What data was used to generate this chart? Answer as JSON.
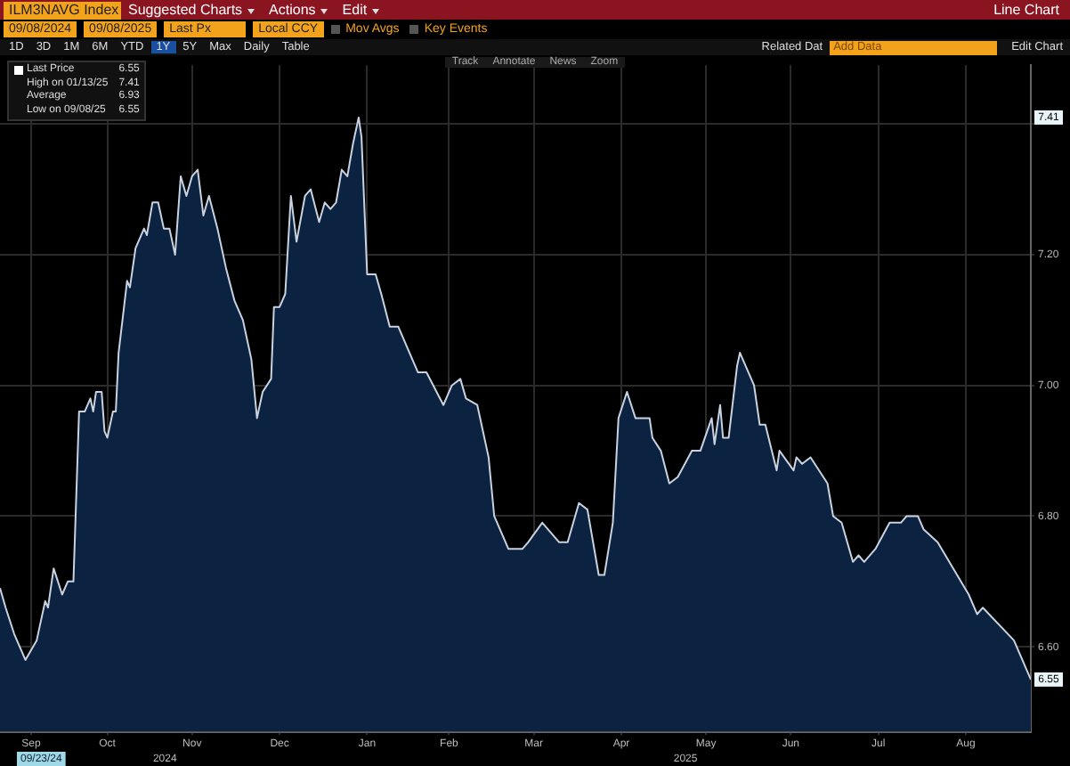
{
  "chart_data": {
    "type": "area",
    "title": "ILM3NAVG Index",
    "subtitle": "Line Chart",
    "x": [
      "2024-09-08",
      "2024-09-10",
      "2024-09-13",
      "2024-09-17",
      "2024-09-21",
      "2024-09-24",
      "2024-09-25",
      "2024-09-27",
      "2024-09-30",
      "2024-10-02",
      "2024-10-04",
      "2024-10-06",
      "2024-10-08",
      "2024-10-10",
      "2024-10-11",
      "2024-10-12",
      "2024-10-14",
      "2024-10-15",
      "2024-10-16",
      "2024-10-18",
      "2024-10-19",
      "2024-10-20",
      "2024-10-23",
      "2024-10-24",
      "2024-10-26",
      "2024-10-29",
      "2024-10-30",
      "2024-11-01",
      "2024-11-03",
      "2024-11-05",
      "2024-11-07",
      "2024-11-09",
      "2024-11-11",
      "2024-11-13",
      "2024-11-15",
      "2024-11-17",
      "2024-11-19",
      "2024-11-21",
      "2024-11-24",
      "2024-11-27",
      "2024-11-30",
      "2024-12-03",
      "2024-12-06",
      "2024-12-08",
      "2024-12-10",
      "2024-12-13",
      "2024-12-14",
      "2024-12-16",
      "2024-12-18",
      "2024-12-20",
      "2024-12-22",
      "2024-12-25",
      "2024-12-27",
      "2024-12-30",
      "2025-01-01",
      "2025-01-03",
      "2025-01-05",
      "2025-01-07",
      "2025-01-09",
      "2025-01-11",
      "2025-01-13",
      "2025-01-14",
      "2025-01-16",
      "2025-01-19",
      "2025-01-21",
      "2025-01-24",
      "2025-01-27",
      "2025-01-31",
      "2025-02-03",
      "2025-02-06",
      "2025-02-12",
      "2025-02-15",
      "2025-02-18",
      "2025-02-20",
      "2025-02-24",
      "2025-02-28",
      "2025-03-02",
      "2025-03-07",
      "2025-03-12",
      "2025-03-14",
      "2025-03-19",
      "2025-03-25",
      "2025-03-28",
      "2025-04-01",
      "2025-04-04",
      "2025-04-08",
      "2025-04-10",
      "2025-04-13",
      "2025-04-15",
      "2025-04-18",
      "2025-04-21",
      "2025-04-26",
      "2025-04-27",
      "2025-04-30",
      "2025-05-03",
      "2025-05-06",
      "2025-05-11",
      "2025-05-14",
      "2025-05-18",
      "2025-05-19",
      "2025-05-21",
      "2025-05-22",
      "2025-05-24",
      "2025-05-27",
      "2025-05-28",
      "2025-06-02",
      "2025-06-04",
      "2025-06-06",
      "2025-06-10",
      "2025-06-11",
      "2025-06-16",
      "2025-06-17",
      "2025-06-19",
      "2025-06-22",
      "2025-06-28",
      "2025-06-30",
      "2025-07-03",
      "2025-07-07",
      "2025-07-09",
      "2025-07-11",
      "2025-07-15",
      "2025-07-20",
      "2025-07-24",
      "2025-07-26",
      "2025-07-30",
      "2025-08-01",
      "2025-08-06",
      "2025-08-17",
      "2025-08-20",
      "2025-08-22",
      "2025-09-02",
      "2025-09-05",
      "2025-09-08"
    ],
    "values": [
      6.69,
      6.66,
      6.62,
      6.58,
      6.61,
      6.67,
      6.66,
      6.72,
      6.68,
      6.7,
      6.7,
      6.96,
      6.96,
      6.98,
      6.96,
      6.99,
      6.99,
      6.93,
      6.92,
      6.96,
      6.96,
      7.05,
      7.16,
      7.15,
      7.21,
      7.24,
      7.23,
      7.28,
      7.28,
      7.24,
      7.24,
      7.2,
      7.32,
      7.29,
      7.32,
      7.33,
      7.26,
      7.29,
      7.24,
      7.18,
      7.13,
      7.1,
      7.04,
      6.95,
      6.99,
      7.01,
      7.12,
      7.12,
      7.14,
      7.29,
      7.22,
      7.29,
      7.3,
      7.25,
      7.28,
      7.27,
      7.28,
      7.33,
      7.32,
      7.37,
      7.41,
      7.38,
      7.17,
      7.17,
      7.14,
      7.09,
      7.09,
      7.05,
      7.02,
      7.02,
      6.97,
      7.0,
      7.01,
      6.98,
      6.97,
      6.89,
      6.8,
      6.75,
      6.75,
      6.76,
      6.79,
      6.76,
      6.76,
      6.82,
      6.81,
      6.71,
      6.71,
      6.79,
      6.95,
      6.99,
      6.95,
      6.95,
      6.92,
      6.9,
      6.85,
      6.86,
      6.9,
      6.9,
      6.95,
      6.91,
      6.97,
      6.92,
      6.92,
      7.03,
      7.05,
      7.0,
      6.94,
      6.94,
      6.87,
      6.9,
      6.87,
      6.89,
      6.88,
      6.89,
      6.85,
      6.8,
      6.79,
      6.73,
      6.74,
      6.73,
      6.75,
      6.79,
      6.79,
      6.8,
      6.8,
      6.78,
      6.76,
      6.68,
      6.65,
      6.66,
      6.61,
      6.58,
      6.55
    ],
    "color": "#0b2341",
    "xlim": [
      "2024-09-08",
      "2025-09-08"
    ],
    "xticks": [
      {
        "value": "2024-09-19",
        "label": "Sep"
      },
      {
        "value": "2024-10-16",
        "label": "Oct"
      },
      {
        "value": "2024-11-15",
        "label": "Nov"
      },
      {
        "value": "2024-12-16",
        "label": "Dec"
      },
      {
        "value": "2025-01-16",
        "label": "Jan"
      },
      {
        "value": "2025-02-14",
        "label": "Feb"
      },
      {
        "value": "2025-03-16",
        "label": "Mar"
      },
      {
        "value": "2025-04-16",
        "label": "Apr"
      },
      {
        "value": "2025-05-16",
        "label": "May"
      },
      {
        "value": "2025-06-15",
        "label": "Jun"
      },
      {
        "value": "2025-07-16",
        "label": "Jul"
      },
      {
        "value": "2025-08-16",
        "label": "Aug"
      }
    ],
    "ylim": [
      6.47,
      7.49
    ],
    "yticks": [
      {
        "value": 6.6,
        "label": "6.60"
      },
      {
        "value": 6.8,
        "label": "6.80"
      },
      {
        "value": 7.0,
        "label": "7.00"
      },
      {
        "value": 7.2,
        "label": "7.20"
      },
      {
        "value": 7.4,
        "label": null
      }
    ],
    "grid": true,
    "annotations": [
      "Suggested Charts",
      "Actions",
      "Edit",
      "09/08/2024",
      "09/08/2025",
      "Last Px",
      "Local CCY",
      "Mov Avgs",
      "Key Events",
      "1D",
      "3D",
      "1M",
      "6M",
      "YTD",
      "1Y",
      "5Y",
      "Max",
      "Daily",
      "Table",
      "Related Dat",
      "Add Data",
      "Edit Chart",
      "Track",
      "Annotate",
      "News",
      "Zoom",
      "Last Price",
      "6.55",
      "High on 01/13/25",
      "7.41",
      "Average",
      "6.93",
      "Low on 09/08/25",
      "6.55",
      "2024",
      "2025",
      "09/23/24",
      {
        "text": "7.41",
        "y": 7.41
      },
      {
        "text": "6.55",
        "y": 6.55
      }
    ]
  }
}
